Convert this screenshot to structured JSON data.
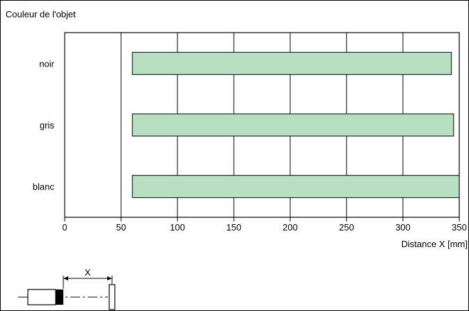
{
  "chart_data": {
    "type": "bar",
    "orientation": "horizontal",
    "title": "Couleur de l'objet",
    "xlabel": "Distance X [mm]",
    "ylabel": "",
    "xlim": [
      0,
      350
    ],
    "xticks": [
      0,
      50,
      100,
      150,
      200,
      250,
      300,
      350
    ],
    "grid": true,
    "categories": [
      "noir",
      "gris",
      "blanc"
    ],
    "ranges": [
      [
        60,
        343
      ],
      [
        60,
        345
      ],
      [
        60,
        350
      ]
    ],
    "bar_color": "#b7dfc2",
    "diagram_label": "X"
  }
}
